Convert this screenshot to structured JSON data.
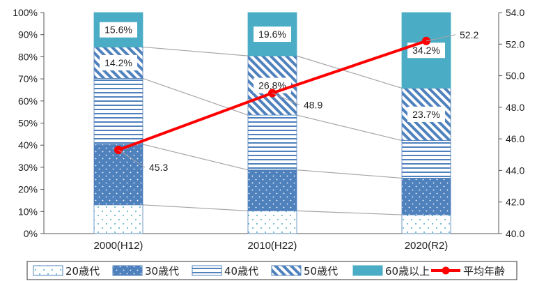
{
  "chart_data": {
    "type": "bar",
    "stacked": true,
    "categories": [
      "2000(H12)",
      "2010(H22)",
      "2020(R2)"
    ],
    "series": [
      {
        "name": "20歳代",
        "values": [
          13.0,
          10.3,
          8.5
        ]
      },
      {
        "name": "30歳代",
        "values": [
          27.4,
          18.5,
          16.6
        ]
      },
      {
        "name": "40歳代",
        "values": [
          29.8,
          24.8,
          17.0
        ]
      },
      {
        "name": "50歳代",
        "values": [
          14.2,
          26.8,
          23.7
        ]
      },
      {
        "name": "60歳以上",
        "values": [
          15.6,
          19.6,
          34.2
        ]
      }
    ],
    "line_series": {
      "name": "平均年齢",
      "values": [
        45.3,
        48.9,
        52.2
      ],
      "axis": "right"
    },
    "y_left": {
      "ticks": [
        "0%",
        "10%",
        "20%",
        "30%",
        "40%",
        "50%",
        "60%",
        "70%",
        "80%",
        "90%",
        "100%"
      ],
      "ylim": [
        0,
        100
      ]
    },
    "y_right": {
      "ticks": [
        "40.0",
        "42.0",
        "44.0",
        "46.0",
        "48.0",
        "50.0",
        "52.0",
        "54.0"
      ],
      "ylim": [
        40,
        54
      ]
    },
    "bar_labels": {
      "50歳代": [
        "14.2%",
        "26.8%",
        "23.7%"
      ],
      "60歳以上": [
        "15.6%",
        "19.6%",
        "34.2%"
      ]
    },
    "line_labels": [
      "45.3",
      "48.9",
      "52.2"
    ],
    "legend": {
      "position": "bottom",
      "items": [
        "20歳代",
        "30歳代",
        "40歳代",
        "50歳代",
        "60歳以上",
        "平均年齢"
      ]
    },
    "colors": {
      "bar": "#4bacc6",
      "dark": "#4f81bd",
      "line": "#ff0000",
      "connector": "#a6a6a6"
    }
  }
}
